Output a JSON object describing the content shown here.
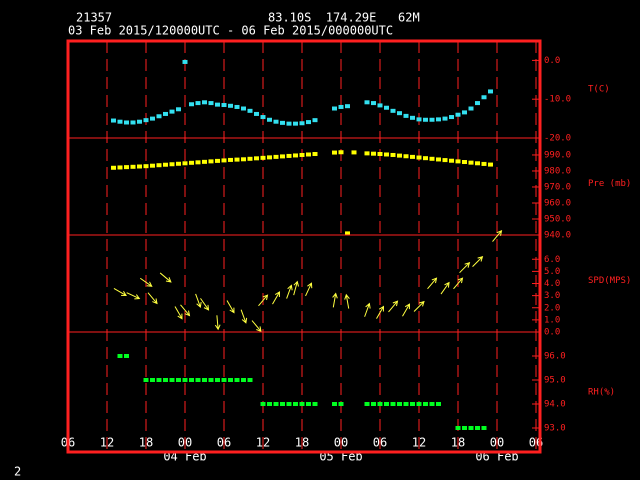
{
  "header": {
    "station": "21357",
    "location": "83.10S  174.29E   62M",
    "period": "03 Feb 2015/120000UTC - 06 Feb 2015/000000UTC",
    "page": "2"
  },
  "chart_data": [
    {
      "type": "scatter",
      "ylabel": "T(C)",
      "color": "#33e0f0",
      "x": [
        13,
        14,
        15,
        16,
        17,
        18,
        19,
        20,
        21,
        22,
        23,
        24,
        25,
        26,
        27,
        28,
        29,
        30,
        31,
        32,
        33,
        34,
        35,
        36,
        37,
        38,
        39,
        40,
        41,
        42,
        43,
        44,
        45,
        46,
        47,
        48,
        49,
        50,
        51,
        52,
        53,
        54,
        55,
        56,
        57,
        58,
        59,
        60,
        61,
        62,
        63,
        64,
        65,
        66,
        67,
        68,
        69,
        70,
        71
      ],
      "values": [
        -15.5,
        -15.8,
        -16.0,
        -16.0,
        -15.8,
        -15.4,
        -15.0,
        -14.4,
        -13.8,
        -13.2,
        -12.6,
        -0.4,
        -11.3,
        -11.0,
        -10.8,
        -11.0,
        -11.4,
        -11.5,
        -11.7,
        -12.0,
        -12.4,
        -13.0,
        -13.8,
        -14.6,
        -15.3,
        -15.8,
        -16.1,
        -16.3,
        -16.3,
        -16.2,
        -15.9,
        -15.4,
        null,
        null,
        -12.4,
        -12.0,
        -11.8,
        null,
        null,
        -10.8,
        -11.0,
        -11.6,
        -12.2,
        -13.0,
        -13.6,
        -14.3,
        -14.8,
        -15.2,
        -15.3,
        -15.3,
        -15.2,
        -15.0,
        -14.6,
        -14.0,
        -13.4,
        -12.4,
        -11.0,
        -9.5,
        -8.0
      ],
      "xlim": [
        6,
        78
      ],
      "ylim": [
        -20,
        5
      ],
      "yticks": [
        {
          "value": 0,
          "label": "0.0"
        },
        {
          "value": -10,
          "label": "-10.0"
        },
        {
          "value": -20,
          "label": "-20.0"
        }
      ]
    },
    {
      "type": "scatter",
      "ylabel": "Pre (mb)",
      "color": "#ffff00",
      "x": [
        13,
        14,
        15,
        16,
        17,
        18,
        19,
        20,
        21,
        22,
        23,
        24,
        25,
        26,
        27,
        28,
        29,
        30,
        31,
        32,
        33,
        34,
        35,
        36,
        37,
        38,
        39,
        40,
        41,
        42,
        43,
        44,
        45,
        46,
        47,
        48,
        49,
        50,
        51,
        52,
        53,
        54,
        55,
        56,
        57,
        58,
        59,
        60,
        61,
        62,
        63,
        64,
        65,
        66,
        67,
        68,
        69,
        70,
        71
      ],
      "values": [
        982.0,
        982.2,
        982.4,
        982.6,
        982.8,
        983.0,
        983.3,
        983.6,
        983.9,
        984.2,
        984.5,
        984.8,
        985.1,
        985.4,
        985.7,
        986.0,
        986.3,
        986.6,
        986.9,
        987.1,
        987.3,
        987.6,
        987.9,
        988.2,
        988.5,
        988.8,
        989.1,
        989.4,
        989.7,
        990.0,
        990.3,
        990.6,
        null,
        null,
        991.5,
        991.7,
        941.0,
        991.6,
        null,
        991.0,
        990.8,
        990.6,
        990.3,
        990.0,
        989.6,
        989.2,
        988.8,
        988.4,
        988.0,
        987.6,
        987.2,
        986.8,
        986.4,
        986.0,
        985.6,
        985.2,
        984.8,
        984.4,
        984.0
      ],
      "xlim": [
        6,
        78
      ],
      "ylim": [
        940,
        1000.6
      ],
      "yticks": [
        {
          "value": 990,
          "label": "990.0"
        },
        {
          "value": 980,
          "label": "980.0"
        },
        {
          "value": 970,
          "label": "970.0"
        },
        {
          "value": 960,
          "label": "960.0"
        },
        {
          "value": 950,
          "label": "950.0"
        },
        {
          "value": 940,
          "label": "940.0"
        }
      ]
    },
    {
      "type": "vector",
      "ylabel": "SPD(MPS)",
      "color": "#ffff40",
      "x": [
        14,
        16,
        18,
        19,
        21,
        23,
        24,
        26,
        27,
        29,
        31,
        33,
        35,
        36,
        38,
        40,
        41,
        43,
        47,
        49,
        52,
        54,
        56,
        58,
        60,
        62,
        64,
        66,
        67,
        69,
        72
      ],
      "values": [
        3.3,
        3.0,
        4.1,
        2.8,
        4.5,
        1.6,
        1.8,
        2.6,
        2.3,
        0.8,
        2.1,
        1.3,
        0.5,
        2.6,
        2.8,
        3.3,
        3.6,
        3.5,
        2.6,
        2.5,
        1.8,
        1.6,
        2.1,
        1.8,
        2.1,
        4.0,
        3.6,
        4.0,
        5.3,
        5.8,
        7.9
      ],
      "directions": [
        120,
        115,
        125,
        140,
        130,
        150,
        140,
        160,
        145,
        175,
        150,
        160,
        140,
        40,
        30,
        20,
        15,
        25,
        10,
        350,
        20,
        30,
        40,
        30,
        45,
        40,
        35,
        40,
        45,
        45,
        40
      ],
      "xlim": [
        6,
        78
      ],
      "ylim": [
        0,
        8
      ],
      "yticks": [
        {
          "value": 6,
          "label": "6.0"
        },
        {
          "value": 5,
          "label": "5.0"
        },
        {
          "value": 4,
          "label": "4.0"
        },
        {
          "value": 3,
          "label": "3.0"
        },
        {
          "value": 2,
          "label": "2.0"
        },
        {
          "value": 1,
          "label": "1.0"
        },
        {
          "value": 0,
          "label": "0.0"
        }
      ]
    },
    {
      "type": "scatter",
      "ylabel": "RH(%)",
      "color": "#00ff20",
      "x": [
        13,
        14,
        15,
        16,
        17,
        18,
        19,
        20,
        21,
        22,
        23,
        24,
        25,
        26,
        27,
        28,
        29,
        30,
        31,
        32,
        33,
        34,
        35,
        36,
        37,
        38,
        39,
        40,
        41,
        42,
        43,
        44,
        45,
        46,
        47,
        48,
        49,
        50,
        51,
        52,
        53,
        54,
        55,
        56,
        57,
        58,
        59,
        60,
        61,
        62,
        63,
        64,
        65,
        66,
        67,
        68,
        69,
        70,
        71
      ],
      "values": [
        null,
        96,
        96,
        null,
        null,
        95,
        95,
        95,
        95,
        95,
        95,
        95,
        95,
        95,
        95,
        95,
        95,
        95,
        95,
        95,
        95,
        95,
        null,
        94,
        94,
        94,
        94,
        94,
        94,
        94,
        94,
        94,
        null,
        null,
        94,
        94,
        null,
        null,
        null,
        94,
        94,
        94,
        94,
        94,
        94,
        94,
        94,
        94,
        94,
        94,
        94,
        null,
        null,
        93,
        93,
        93,
        93,
        93,
        null
      ],
      "xlim": [
        6,
        78
      ],
      "ylim": [
        92,
        97
      ],
      "yticks": [
        {
          "value": 96,
          "label": "96.0"
        },
        {
          "value": 95,
          "label": "95.0"
        },
        {
          "value": 94,
          "label": "94.0"
        },
        {
          "value": 93,
          "label": "93.0"
        }
      ],
      "xticks": [
        {
          "value": 6,
          "label": "06"
        },
        {
          "value": 12,
          "label": "12"
        },
        {
          "value": 18,
          "label": "18"
        },
        {
          "value": 24,
          "label": "00"
        },
        {
          "value": 30,
          "label": "06"
        },
        {
          "value": 36,
          "label": "12"
        },
        {
          "value": 42,
          "label": "18"
        },
        {
          "value": 48,
          "label": "00"
        },
        {
          "value": 54,
          "label": "06"
        },
        {
          "value": 60,
          "label": "12"
        },
        {
          "value": 66,
          "label": "18"
        },
        {
          "value": 72,
          "label": "00"
        },
        {
          "value": 78,
          "label": "06"
        }
      ],
      "date_labels": [
        {
          "value": 24,
          "label": "04 Feb"
        },
        {
          "value": 48,
          "label": "05 Feb"
        },
        {
          "value": 72,
          "label": "06 Feb"
        }
      ]
    }
  ]
}
